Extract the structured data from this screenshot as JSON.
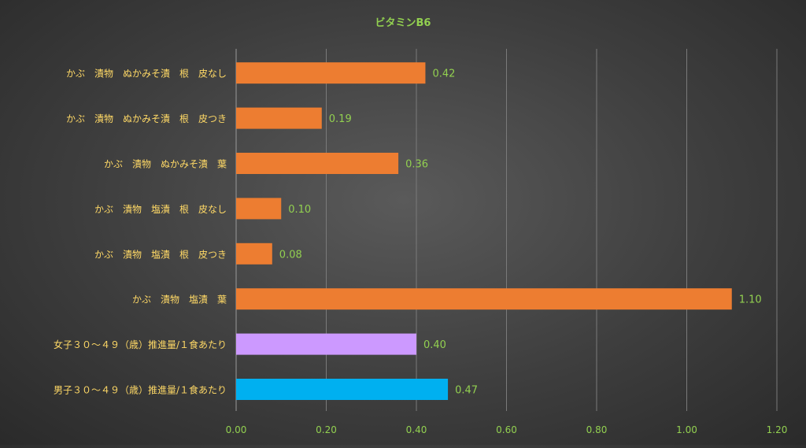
{
  "chart_data": {
    "type": "bar",
    "orientation": "horizontal",
    "title": "ビタミンB6",
    "categories": [
      "かぶ　漬物　ぬかみそ漬　根　皮なし",
      "かぶ　漬物　ぬかみそ漬　根　皮つき",
      "かぶ　漬物　ぬかみそ漬　葉",
      "かぶ　漬物　塩漬　根　皮なし",
      "かぶ　漬物　塩漬　根　皮つき",
      "かぶ　漬物　塩漬　葉",
      "女子３０～４９（歳）推進量/１食あたり",
      "男子３０～４９（歳）推進量/１食あたり"
    ],
    "values": [
      0.42,
      0.19,
      0.36,
      0.1,
      0.08,
      1.1,
      0.4,
      0.47
    ],
    "value_labels": [
      "0.42",
      "0.19",
      "0.36",
      "0.10",
      "0.08",
      "1.10",
      "0.40",
      "0.47"
    ],
    "bar_colors": [
      "#ed7d31",
      "#ed7d31",
      "#ed7d31",
      "#ed7d31",
      "#ed7d31",
      "#ed7d31",
      "#cc99ff",
      "#00b0f0"
    ],
    "xlim": [
      0,
      1.2
    ],
    "xticks": [
      "0.00",
      "0.20",
      "0.40",
      "0.60",
      "0.80",
      "1.00",
      "1.20"
    ],
    "xtick_values": [
      0,
      0.2,
      0.4,
      0.6,
      0.8,
      1.0,
      1.2
    ],
    "grid": "vertical",
    "legend": "none",
    "colors": {
      "title": "#92d050",
      "category_label": "#ffd966",
      "value_label": "#92d050",
      "tick_label": "#92d050",
      "gridline": "#7a7a7a"
    }
  }
}
